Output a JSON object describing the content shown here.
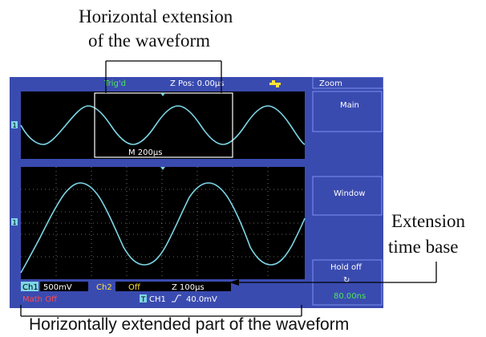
{
  "annotations": {
    "top_line1": "Horizontal extension",
    "top_line2": "of the waveform",
    "right_line1": "Extension",
    "right_line2": "time base",
    "bottom": "Horizontally extended part of the waveform"
  },
  "status_bar": {
    "trigger_status": "Trig'd",
    "z_pos": "Z Pos: 0.00µs",
    "usb_icon": "usb-icon"
  },
  "menu": {
    "title": "Zoom",
    "item1": "Main",
    "item2": "Window",
    "item3_label": "Hold off",
    "item3_symbol": "↻",
    "item3_value": "80.00ns"
  },
  "main_window": {
    "timebase": "M 200µs"
  },
  "readout": {
    "ch1_label": "Ch1",
    "ch1_scale": "500mV",
    "ch2_label": "Ch2",
    "ch2_state": "Off",
    "z_timebase": "Z 100µs",
    "math": "Math Off",
    "trigger_badge": "T",
    "trigger_source": "CH1",
    "trigger_slope_icon": "rising-edge-icon",
    "trigger_level": "40.0mV"
  },
  "channel_marker": "1",
  "colors": {
    "panel": "#3a4bb0",
    "screen": "#000000",
    "trace": "#7cd6e6",
    "menu_text": "#ffffff",
    "status_green": "#4ee65a",
    "status_yellow": "#ffe13a",
    "math_red": "#ff4a4a"
  }
}
